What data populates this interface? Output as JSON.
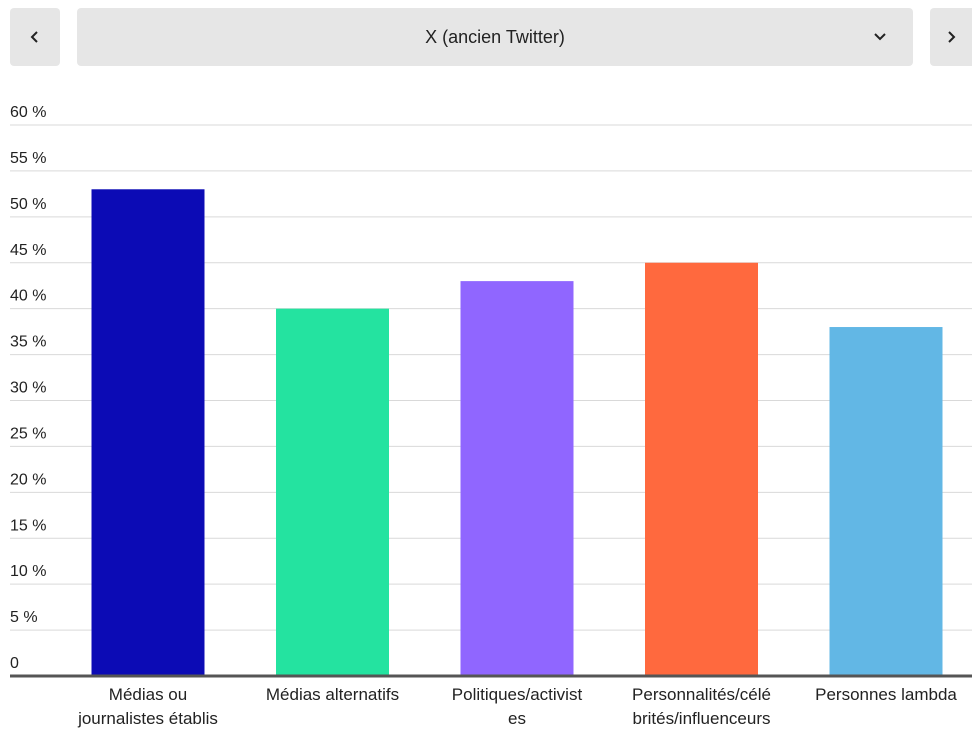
{
  "selector": {
    "selected_value": "X (ancien Twitter)",
    "prev_icon": "chevron-left-icon",
    "next_icon": "chevron-right-icon",
    "dropdown_icon": "chevron-down-icon"
  },
  "chart_data": {
    "type": "bar",
    "categories": [
      [
        "Médias ou",
        "journalistes établis"
      ],
      [
        "Médias alternatifs"
      ],
      [
        "Politiques/activist",
        "es"
      ],
      [
        "Personnalités/célé",
        "brités/influenceurs"
      ],
      [
        "Personnes lambda"
      ]
    ],
    "values": [
      53,
      40,
      43,
      45,
      38
    ],
    "colors": [
      "#0c0bb5",
      "#24e3a0",
      "#9066ff",
      "#ff693e",
      "#62b7e5"
    ],
    "yticks": [
      "0",
      "5 %",
      "10 %",
      "15 %",
      "20 %",
      "25 %",
      "30 %",
      "35 %",
      "40 %",
      "45 %",
      "50 %",
      "55 %",
      "60 %"
    ],
    "ylim": [
      0,
      60
    ],
    "grid": true,
    "title": "",
    "xlabel": "",
    "ylabel": ""
  }
}
